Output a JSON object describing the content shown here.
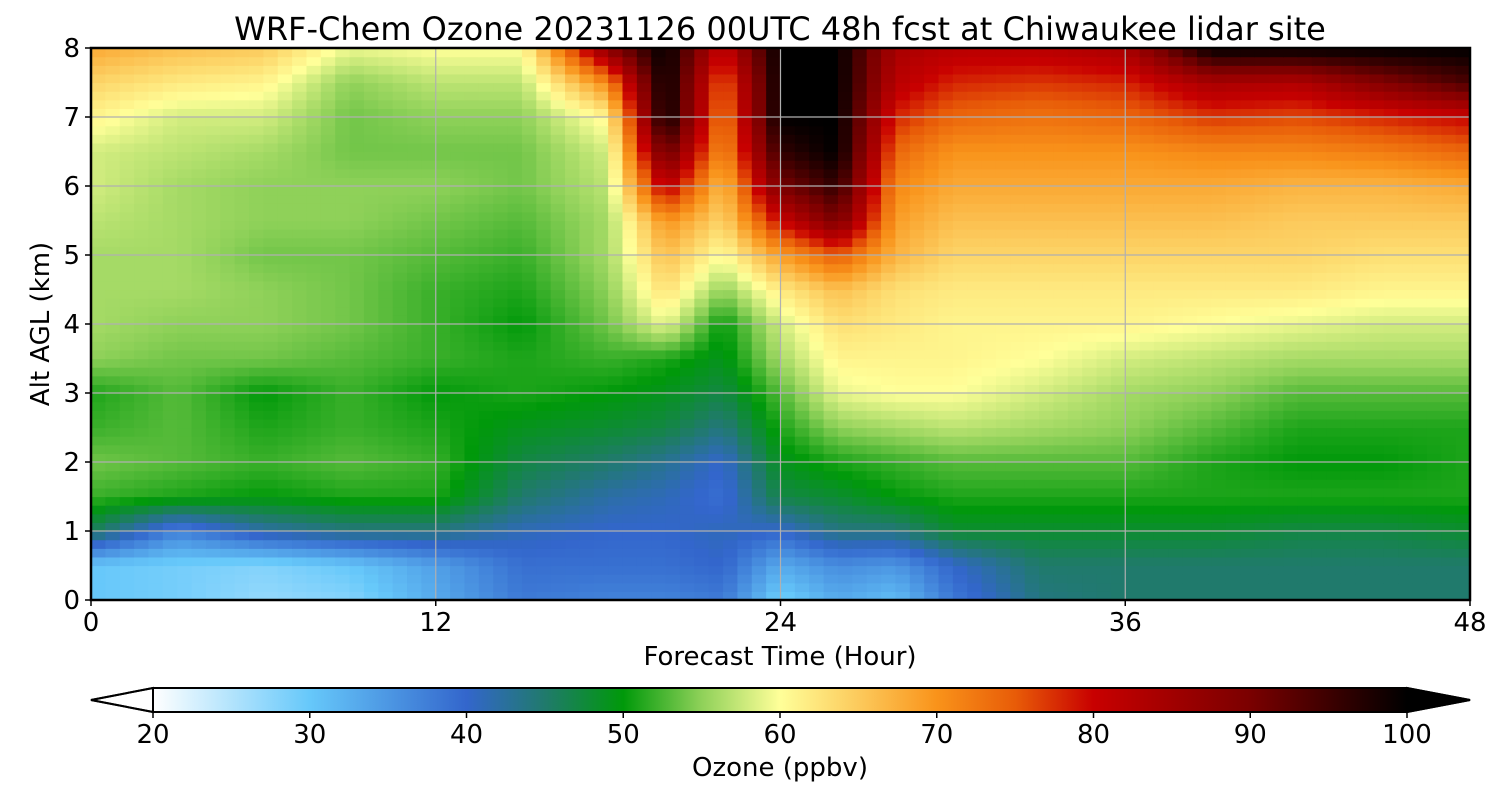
{
  "chart_data": {
    "type": "heatmap",
    "title": "WRF-Chem Ozone  20231126 00UTC 48h fcst at Chiwaukee lidar site",
    "xlabel": "Forecast Time (Hour)",
    "ylabel": "Alt AGL (km)",
    "xlim": [
      0,
      48
    ],
    "ylim": [
      0,
      8
    ],
    "x_ticks": [
      0,
      12,
      24,
      36,
      48
    ],
    "y_ticks": [
      0,
      1,
      2,
      3,
      4,
      5,
      6,
      7,
      8
    ],
    "grid": true,
    "x": [
      0,
      3,
      6,
      9,
      12,
      15,
      18,
      20,
      22,
      24,
      26,
      28,
      30,
      33,
      36,
      39,
      42,
      45,
      48
    ],
    "y": [
      0,
      0.5,
      1,
      1.5,
      2,
      2.5,
      3,
      3.5,
      4,
      4.5,
      5,
      5.5,
      6,
      6.5,
      7,
      7.5,
      8
    ],
    "z": [
      [
        30,
        29,
        27,
        28,
        33,
        38,
        37,
        37,
        38,
        29,
        33,
        31,
        38,
        44,
        45,
        45,
        45,
        45,
        45
      ],
      [
        30,
        29,
        28,
        30,
        34,
        39,
        39,
        39,
        40,
        33,
        36,
        35,
        40,
        45,
        45,
        45,
        45,
        45,
        45
      ],
      [
        46,
        37,
        42,
        44,
        44,
        41,
        40,
        40,
        41,
        40,
        44,
        44,
        48,
        48,
        48,
        48,
        47,
        47,
        48
      ],
      [
        52,
        51,
        50,
        51,
        51,
        45,
        42,
        41,
        39,
        47,
        48,
        50,
        51,
        51,
        51,
        51,
        51,
        51,
        51
      ],
      [
        54,
        53,
        52,
        53,
        52,
        47,
        45,
        43,
        40,
        49,
        51,
        52,
        53,
        53,
        53,
        51,
        50,
        50,
        51
      ],
      [
        52,
        53,
        51,
        52,
        51,
        49,
        48,
        47,
        44,
        51,
        55,
        56,
        57,
        56,
        55,
        53,
        51,
        51,
        51
      ],
      [
        51,
        53,
        50,
        52,
        50,
        51,
        50,
        49,
        47,
        53,
        59,
        60,
        60,
        58,
        56,
        55,
        53,
        53,
        53
      ],
      [
        55,
        54,
        54,
        53,
        52,
        51,
        52,
        51,
        49,
        56,
        61,
        61,
        61,
        60,
        58,
        57,
        56,
        56,
        56
      ],
      [
        56,
        55,
        55,
        54,
        52,
        50,
        54,
        59,
        50,
        58,
        63,
        62,
        61,
        61,
        61,
        60,
        59,
        58,
        58
      ],
      [
        56,
        56,
        55,
        54,
        52,
        51,
        55,
        63,
        55,
        62,
        66,
        63,
        62,
        62,
        62,
        62,
        62,
        61,
        61
      ],
      [
        56,
        56,
        54,
        54,
        53,
        52,
        56,
        66,
        60,
        69,
        75,
        67,
        64,
        64,
        64,
        64,
        64,
        63,
        63
      ],
      [
        57,
        56,
        55,
        55,
        54,
        53,
        56,
        70,
        64,
        80,
        90,
        69,
        66,
        66,
        66,
        66,
        65,
        65,
        65
      ],
      [
        58,
        56,
        55,
        55,
        55,
        54,
        57,
        82,
        66,
        90,
        96,
        71,
        68,
        68,
        68,
        68,
        67,
        67,
        68
      ],
      [
        58,
        57,
        56,
        54,
        54,
        54,
        58,
        92,
        70,
        96,
        100,
        74,
        70,
        70,
        70,
        71,
        71,
        72,
        74
      ],
      [
        61,
        58,
        58,
        54,
        55,
        55,
        61,
        100,
        72,
        100,
        100,
        78,
        74,
        73,
        74,
        77,
        76,
        78,
        80
      ],
      [
        64,
        62,
        61,
        55,
        57,
        57,
        71,
        100,
        74,
        100,
        100,
        82,
        78,
        77,
        78,
        84,
        83,
        89,
        94
      ],
      [
        68,
        66,
        65,
        59,
        60,
        60,
        88,
        100,
        80,
        100,
        100,
        84,
        82,
        82,
        84,
        100,
        100,
        100,
        100
      ]
    ],
    "colorbar": {
      "label": "Ozone  (ppbv)",
      "min": 20,
      "max": 100,
      "ticks": [
        20,
        30,
        40,
        50,
        60,
        70,
        80,
        90,
        100
      ],
      "extend": "both",
      "stops": [
        {
          "v": 20,
          "c": "#ffffff"
        },
        {
          "v": 30,
          "c": "#66c8fa"
        },
        {
          "v": 40,
          "c": "#3366cc"
        },
        {
          "v": 45,
          "c": "#207a6c"
        },
        {
          "v": 50,
          "c": "#00990a"
        },
        {
          "v": 55,
          "c": "#8fd159"
        },
        {
          "v": 60,
          "c": "#ffff99"
        },
        {
          "v": 65,
          "c": "#fcca5c"
        },
        {
          "v": 70,
          "c": "#f9931a"
        },
        {
          "v": 75,
          "c": "#e85c08"
        },
        {
          "v": 80,
          "c": "#c80000"
        },
        {
          "v": 90,
          "c": "#7a0000"
        },
        {
          "v": 100,
          "c": "#000000"
        }
      ]
    }
  }
}
